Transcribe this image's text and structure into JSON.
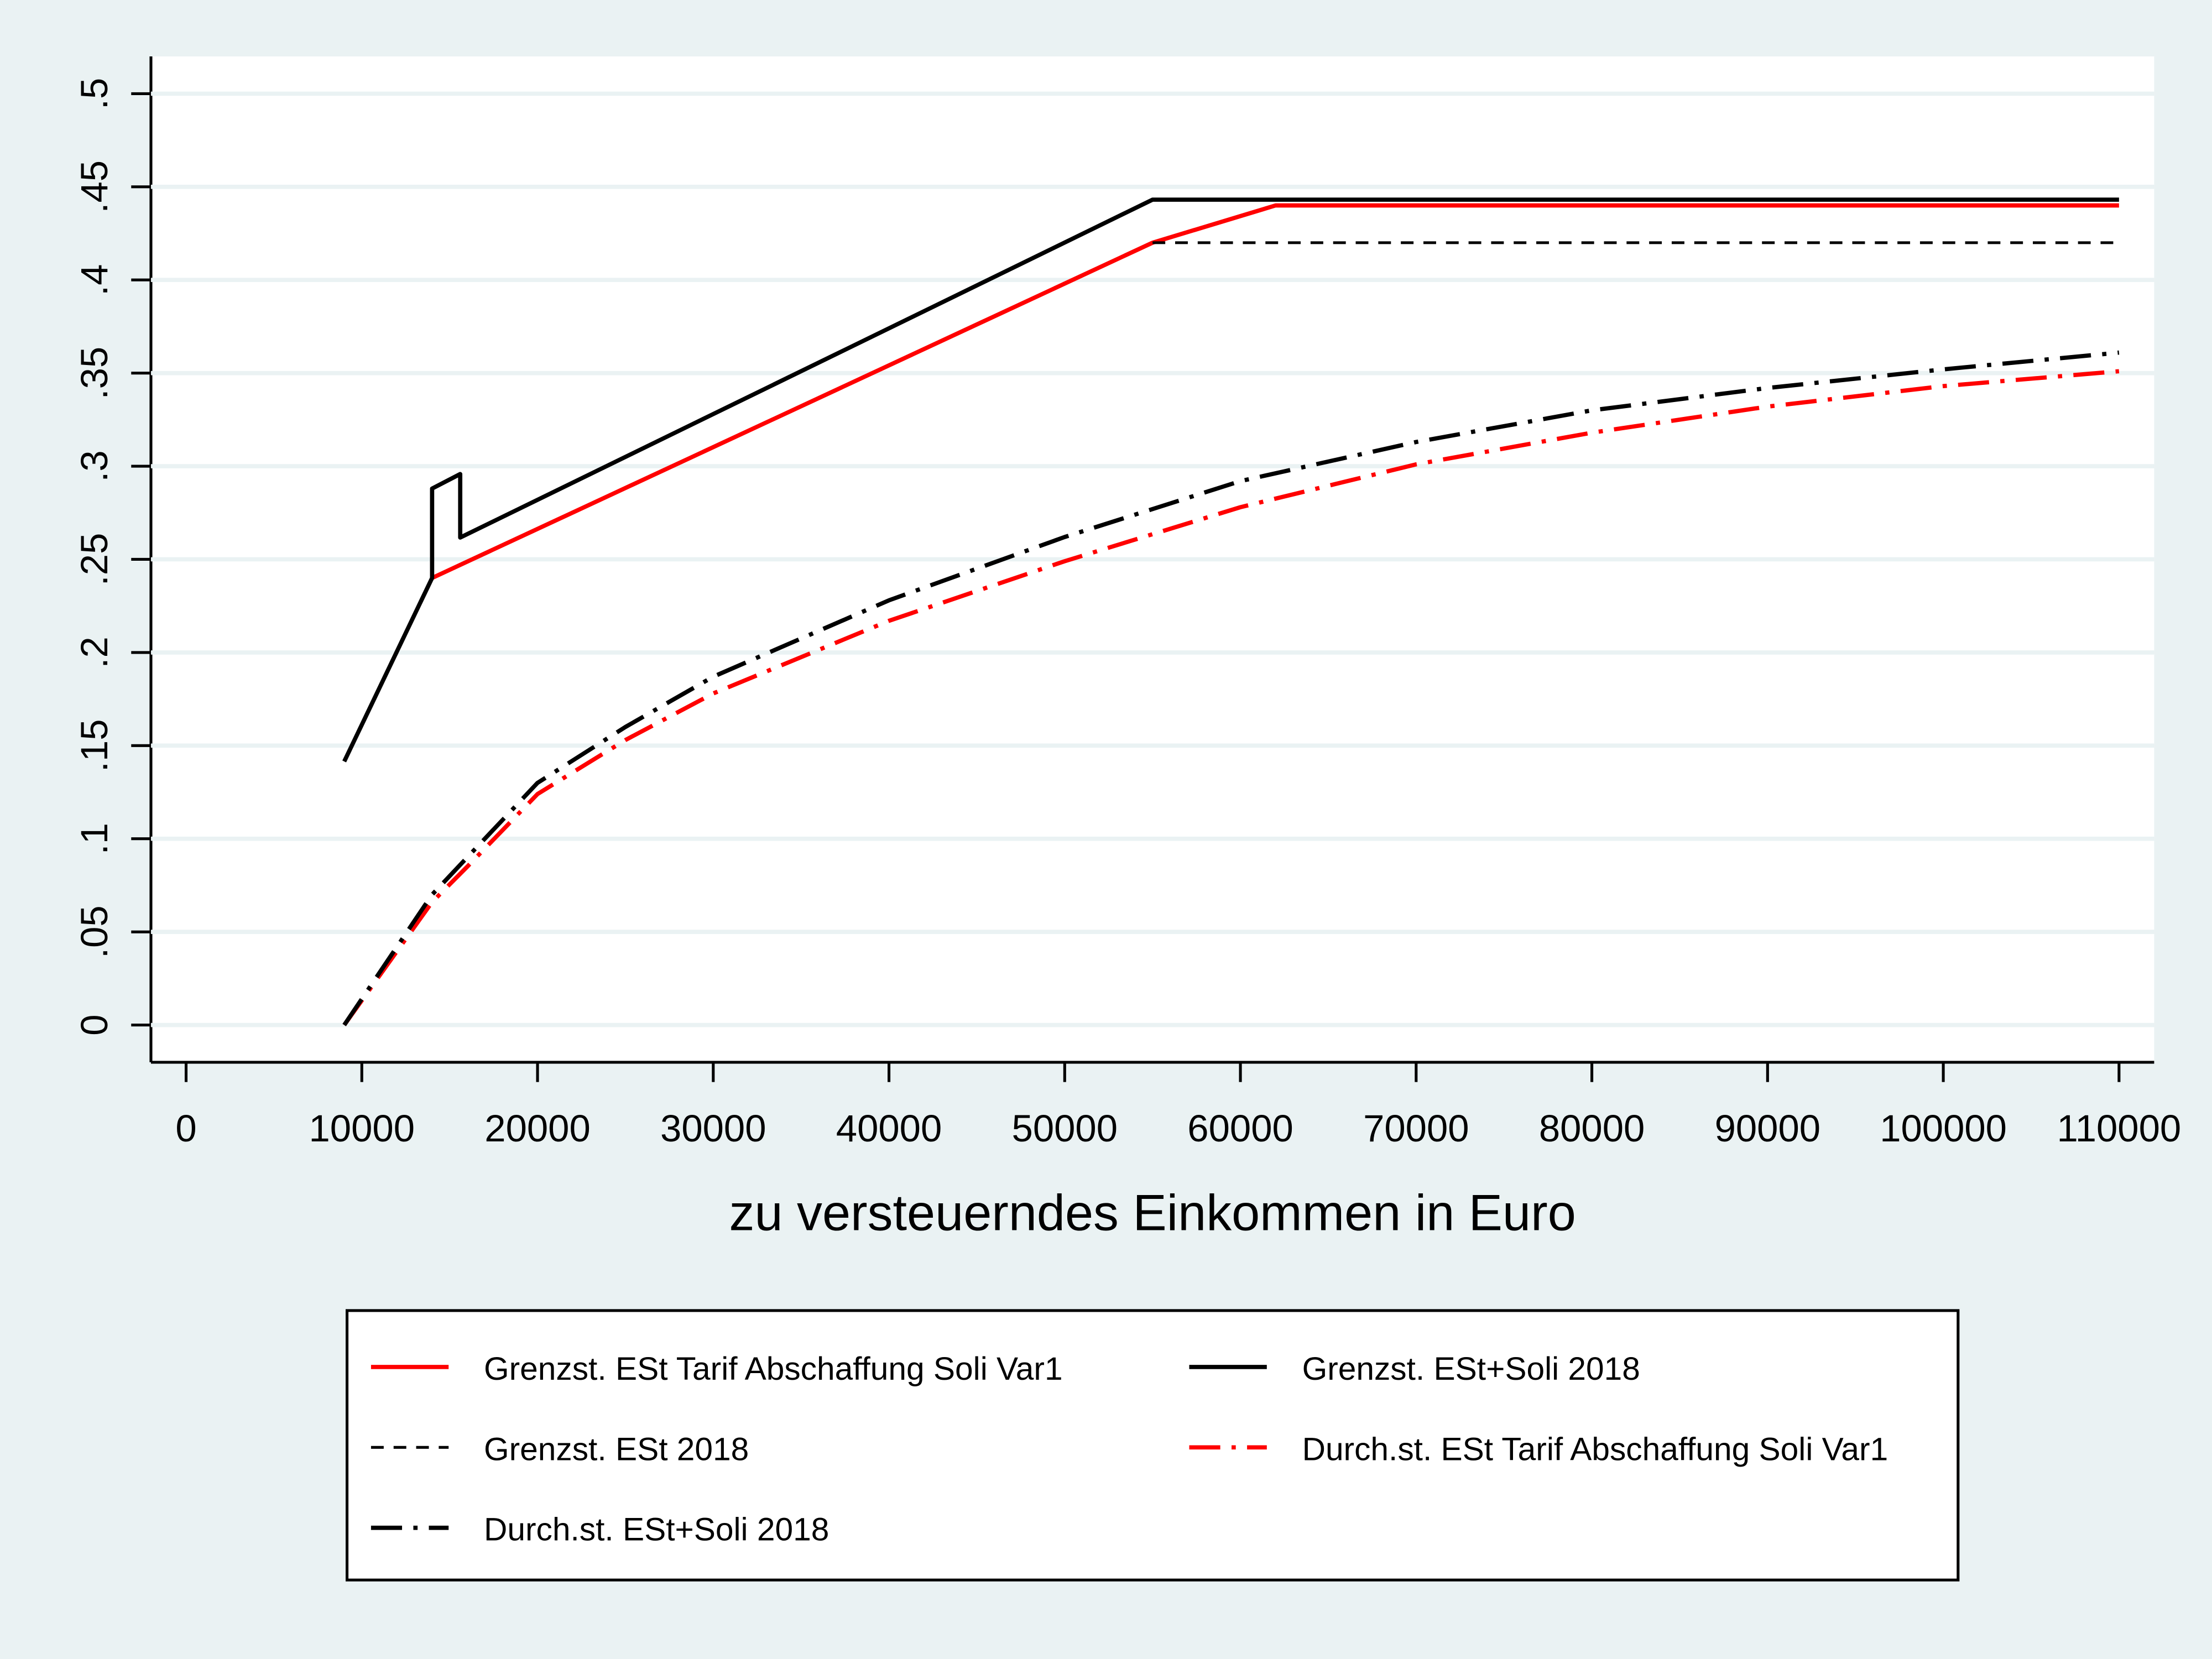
{
  "chart_data": {
    "type": "line",
    "x_label": "zu versteuerndes Einkommen in Euro",
    "xlim": [
      -2000,
      112000
    ],
    "xticks": [
      0,
      10000,
      20000,
      30000,
      40000,
      50000,
      60000,
      70000,
      80000,
      90000,
      100000,
      110000
    ],
    "ylim": [
      -0.02,
      0.52
    ],
    "yticks": [
      0,
      {
        "value": 0.05,
        "label": ".05"
      },
      {
        "value": 0.1,
        "label": ".1"
      },
      {
        "value": 0.15,
        "label": ".15"
      },
      {
        "value": 0.2,
        "label": ".2"
      },
      {
        "value": 0.25,
        "label": ".25"
      },
      {
        "value": 0.3,
        "label": ".3"
      },
      {
        "value": 0.35,
        "label": ".35"
      },
      {
        "value": 0.4,
        "label": ".4"
      },
      {
        "value": 0.45,
        "label": ".45"
      },
      {
        "value": 0.5,
        "label": ".5"
      }
    ],
    "grid": true,
    "legend_position": "bottom",
    "series": [
      {
        "name": "Grenzst. ESt Tarif Abschaffung Soli Var1",
        "color": "#ff0000",
        "line_style": "solid",
        "x": [
          14000,
          55000,
          62000,
          110000
        ],
        "values": [
          0.24,
          0.42,
          0.44,
          0.44
        ]
      },
      {
        "name": "Grenzst. ESt+Soli 2018",
        "color": "#000000",
        "line_style": "solid",
        "x": [
          9000,
          14000,
          14000,
          15600,
          15600,
          55000,
          110000
        ],
        "values": [
          0.1415,
          0.24,
          0.288,
          0.2958,
          0.2617,
          0.4431,
          0.4431
        ]
      },
      {
        "name": "Grenzst. ESt 2018",
        "color": "#000000",
        "line_style": "dash",
        "x": [
          55000,
          110000
        ],
        "values": [
          0.42,
          0.42
        ]
      },
      {
        "name": "Durch.st. ESt Tarif Abschaffung Soli Var1",
        "color": "#ff0000",
        "line_style": "dashdot",
        "x": [
          9000,
          14000,
          16000,
          20000,
          25000,
          30000,
          40000,
          50000,
          60000,
          70000,
          80000,
          90000,
          100000,
          110000
        ],
        "values": [
          0,
          0.066,
          0.085,
          0.124,
          0.153,
          0.178,
          0.217,
          0.249,
          0.278,
          0.301,
          0.318,
          0.332,
          0.343,
          0.351
        ]
      },
      {
        "name": "Durch.st. ESt+Soli 2018",
        "color": "#000000",
        "line_style": "dashdot",
        "x": [
          9000,
          14000,
          16000,
          20000,
          25000,
          30000,
          40000,
          50000,
          60000,
          70000,
          80000,
          90000,
          100000,
          110000
        ],
        "values": [
          0,
          0.07,
          0.09,
          0.13,
          0.16,
          0.187,
          0.228,
          0.262,
          0.292,
          0.313,
          0.33,
          0.342,
          0.352,
          0.361
        ]
      }
    ]
  }
}
